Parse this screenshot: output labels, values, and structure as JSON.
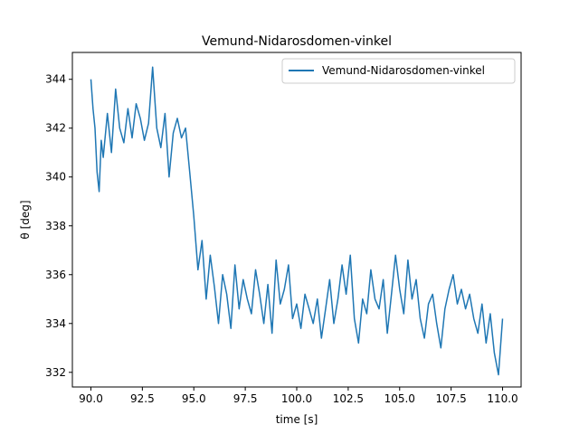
{
  "chart_data": {
    "type": "line",
    "title": "Vemund-Nidarosdomen-vinkel",
    "xlabel": "time [s]",
    "ylabel": "θ [deg]",
    "xlim": [
      89.1,
      110.9
    ],
    "ylim": [
      331.4,
      345.1
    ],
    "xticks": [
      90.0,
      92.5,
      95.0,
      97.5,
      100.0,
      102.5,
      105.0,
      107.5,
      110.0
    ],
    "xtick_labels": [
      "90.0",
      "92.5",
      "95.0",
      "97.5",
      "100.0",
      "102.5",
      "105.0",
      "107.5",
      "110.0"
    ],
    "yticks": [
      332,
      334,
      336,
      338,
      340,
      342,
      344
    ],
    "ytick_labels": [
      "332",
      "334",
      "336",
      "338",
      "340",
      "342",
      "344"
    ],
    "grid": false,
    "legend_position": "top-right",
    "series": [
      {
        "name": "Vemund-Nidarosdomen-vinkel",
        "color": "#1f77b4",
        "x": [
          90.0,
          90.1,
          90.2,
          90.3,
          90.4,
          90.5,
          90.6,
          90.8,
          91.0,
          91.2,
          91.4,
          91.6,
          91.8,
          92.0,
          92.2,
          92.4,
          92.6,
          92.8,
          93.0,
          93.2,
          93.4,
          93.6,
          93.8,
          94.0,
          94.2,
          94.4,
          94.6,
          94.8,
          95.0,
          95.2,
          95.4,
          95.6,
          95.8,
          96.0,
          96.2,
          96.4,
          96.6,
          96.8,
          97.0,
          97.2,
          97.4,
          97.6,
          97.8,
          98.0,
          98.2,
          98.4,
          98.6,
          98.8,
          99.0,
          99.2,
          99.4,
          99.6,
          99.8,
          100.0,
          100.2,
          100.4,
          100.6,
          100.8,
          101.0,
          101.2,
          101.4,
          101.6,
          101.8,
          102.0,
          102.2,
          102.4,
          102.6,
          102.8,
          103.0,
          103.2,
          103.4,
          103.6,
          103.8,
          104.0,
          104.2,
          104.4,
          104.6,
          104.8,
          105.0,
          105.2,
          105.4,
          105.6,
          105.8,
          106.0,
          106.2,
          106.4,
          106.6,
          106.8,
          107.0,
          107.2,
          107.4,
          107.6,
          107.8,
          108.0,
          108.2,
          108.4,
          108.6,
          108.8,
          109.0,
          109.2,
          109.4,
          109.6,
          109.8,
          110.0
        ],
        "y": [
          344.0,
          342.8,
          342.0,
          340.2,
          339.4,
          341.5,
          340.8,
          342.6,
          341.0,
          343.6,
          342.0,
          341.4,
          342.8,
          341.6,
          343.0,
          342.4,
          341.5,
          342.2,
          344.5,
          342.0,
          341.2,
          342.6,
          340.0,
          341.8,
          342.4,
          341.6,
          342.0,
          340.2,
          338.4,
          336.2,
          337.4,
          335.0,
          336.8,
          335.5,
          334.0,
          336.0,
          335.2,
          333.8,
          336.4,
          334.6,
          335.8,
          335.0,
          334.4,
          336.2,
          335.2,
          334.0,
          335.6,
          333.6,
          336.6,
          334.8,
          335.4,
          336.4,
          334.2,
          334.8,
          333.8,
          335.2,
          334.6,
          334.0,
          335.0,
          333.4,
          334.6,
          335.8,
          334.0,
          335.0,
          336.4,
          335.2,
          336.8,
          334.2,
          333.2,
          335.0,
          334.4,
          336.2,
          335.0,
          334.6,
          335.8,
          333.6,
          335.2,
          336.8,
          335.4,
          334.4,
          336.6,
          335.0,
          335.8,
          334.2,
          333.4,
          334.8,
          335.2,
          334.0,
          333.0,
          334.6,
          335.4,
          336.0,
          334.8,
          335.4,
          334.6,
          335.2,
          334.2,
          333.6,
          334.8,
          333.2,
          334.4,
          332.8,
          331.9,
          334.2
        ]
      }
    ]
  }
}
